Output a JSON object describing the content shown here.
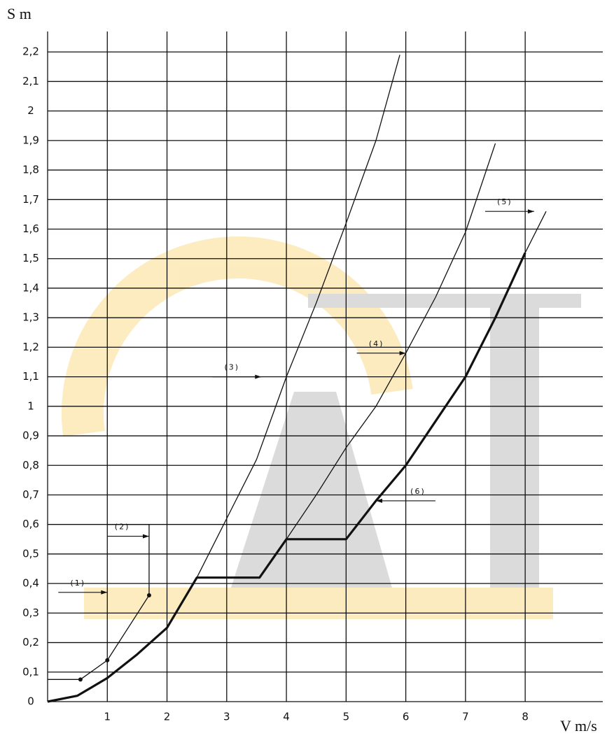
{
  "chart_data": {
    "type": "line",
    "y_label": "S m",
    "x_label": "V m/s",
    "xlim": [
      0,
      9.3
    ],
    "ylim": [
      0,
      2.3
    ],
    "xticks": [
      1,
      2,
      3,
      4,
      5,
      6,
      7,
      8
    ],
    "yticks": [
      0,
      {
        "value": 0.1,
        "label": "0,1"
      },
      {
        "value": 0.2,
        "label": "0,2"
      },
      {
        "value": 0.3,
        "label": "0,3"
      },
      {
        "value": 0.4,
        "label": "0,4"
      },
      {
        "value": 0.5,
        "label": "0,5"
      },
      {
        "value": 0.6,
        "label": "0,6"
      },
      {
        "value": 0.7,
        "label": "0,7"
      },
      {
        "value": 0.8,
        "label": "0,8"
      },
      {
        "value": 0.9,
        "label": "0,9"
      },
      1,
      {
        "value": 1.1,
        "label": "1,1"
      },
      {
        "value": 1.2,
        "label": "1,2"
      },
      {
        "value": 1.3,
        "label": "1,3"
      },
      {
        "value": 1.4,
        "label": "1,4"
      },
      {
        "value": 1.5,
        "label": "1,5"
      },
      {
        "value": 1.6,
        "label": "1,6"
      },
      {
        "value": 1.7,
        "label": "1,7"
      },
      {
        "value": 1.8,
        "label": "1,8"
      },
      {
        "value": 1.9,
        "label": "1,9"
      },
      2,
      {
        "value": 2.1,
        "label": "2,1"
      },
      {
        "value": 2.2,
        "label": "2,2"
      }
    ],
    "grid": true,
    "series": [
      {
        "name": "(1)",
        "color": "#111111",
        "markers": true,
        "width": 1.3,
        "x": [
          0,
          0.55,
          1,
          1.7
        ],
        "values": [
          0.075,
          0.075,
          0.14,
          0.36
        ]
      },
      {
        "name": "(2)",
        "color": "#111111",
        "markers": false,
        "width": 1.3,
        "x": [
          1,
          1.7,
          1.7
        ],
        "values": [
          0.6,
          0.6,
          0.36
        ]
      },
      {
        "name": "(3)",
        "color": "#111111",
        "markers": false,
        "width": 1.3,
        "x": [
          2.5,
          3,
          3.5,
          4,
          4.5,
          5,
          5.5,
          5.9
        ],
        "values": [
          0.42,
          0.62,
          0.82,
          1.1,
          1.35,
          1.62,
          1.9,
          2.19
        ]
      },
      {
        "name": "(4)",
        "color": "#111111",
        "markers": false,
        "width": 1.3,
        "x": [
          4,
          4.5,
          5,
          5.5,
          6,
          6.5,
          7,
          7.5
        ],
        "values": [
          0.55,
          0.7,
          0.86,
          1.0,
          1.18,
          1.37,
          1.59,
          1.89
        ]
      },
      {
        "name": "(5)",
        "color": "#111111",
        "markers": false,
        "width": 1.3,
        "x": [
          8,
          8.35
        ],
        "values": [
          1.52,
          1.66
        ]
      },
      {
        "name": "(6)",
        "color": "#111111",
        "markers": false,
        "width": 3.2,
        "x": [
          0,
          0.5,
          1,
          1.5,
          2,
          2.5,
          3.55,
          4,
          5,
          5.5,
          6,
          6.5,
          7,
          7.5,
          8
        ],
        "values": [
          0,
          0.02,
          0.08,
          0.16,
          0.25,
          0.42,
          0.42,
          0.55,
          0.55,
          0.68,
          0.8,
          0.95,
          1.1,
          1.3,
          1.52
        ]
      }
    ]
  }
}
